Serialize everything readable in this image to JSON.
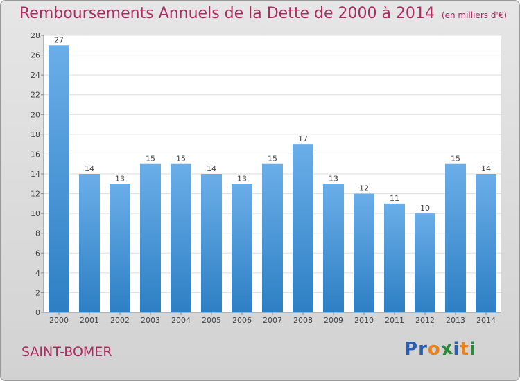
{
  "header": {
    "title": "Remboursements Annuels de la Dette de 2000 à 2014",
    "subtitle": "(en milliers d'€)"
  },
  "footer": {
    "town": "SAINT-BOMER",
    "logo_letters": [
      "P",
      "r",
      "o",
      "x",
      "i",
      "t",
      "i"
    ]
  },
  "colors": {
    "title": "#b02a60",
    "bar_top": "#6aaee8",
    "bar_bottom": "#2d7fc4",
    "logo": [
      "#2a5fb0",
      "#2a5fb0",
      "#e8821e",
      "#2a8a3a",
      "#2a5fb0",
      "#e8821e",
      "#2a8a3a"
    ]
  },
  "chart_data": {
    "type": "bar",
    "categories": [
      "2000",
      "2001",
      "2002",
      "2003",
      "2004",
      "2005",
      "2006",
      "2007",
      "2008",
      "2009",
      "2010",
      "2011",
      "2012",
      "2013",
      "2014"
    ],
    "values": [
      27,
      14,
      13,
      15,
      15,
      14,
      13,
      15,
      17,
      13,
      12,
      11,
      10,
      15,
      14
    ],
    "title": "Remboursements Annuels de la Dette de 2000 à 2014",
    "ylim": [
      0,
      28
    ],
    "yticks": [
      0,
      2,
      4,
      6,
      8,
      10,
      12,
      14,
      16,
      18,
      20,
      22,
      24,
      26,
      28
    ],
    "grid": true,
    "legend": "none"
  }
}
